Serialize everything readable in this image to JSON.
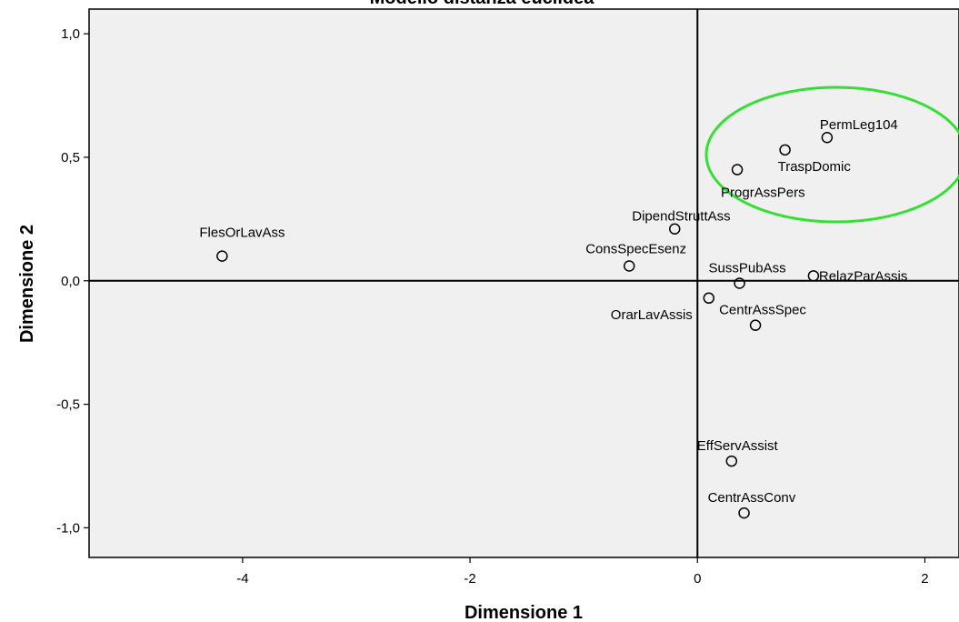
{
  "chart_data": {
    "type": "scatter",
    "title": "Modello distanza euclidea",
    "xlabel": "Dimensione 1",
    "ylabel": "Dimensione 2",
    "xlim": [
      -5.35,
      2.3
    ],
    "ylim": [
      -1.12,
      1.1
    ],
    "xticks": [
      -4,
      -2,
      0,
      2
    ],
    "xtick_labels": [
      "-4",
      "-2",
      "0",
      "2"
    ],
    "yticks": [
      1.0,
      0.5,
      0.0,
      -0.5,
      -1.0
    ],
    "ytick_labels": [
      "1,0",
      "0,5",
      "0,0",
      "-0,5",
      "-1,0"
    ],
    "reference_lines": {
      "x": 0,
      "y": 0
    },
    "grid": false,
    "background_color": "#f0f0f0",
    "highlight_color": "#33e033",
    "points": [
      {
        "label": "PermLeg104",
        "x": 1.14,
        "y": 0.58
      },
      {
        "label": "TraspDomic",
        "x": 0.77,
        "y": 0.53
      },
      {
        "label": "ProgrAssPers",
        "x": 0.35,
        "y": 0.45
      },
      {
        "label": "DipendStruttAss",
        "x": -0.2,
        "y": 0.21
      },
      {
        "label": "FlesOrLavAss",
        "x": -4.18,
        "y": 0.1
      },
      {
        "label": "ConsSpecEsenz",
        "x": -0.6,
        "y": 0.06
      },
      {
        "label": "SussPubAss",
        "x": 0.37,
        "y": -0.01
      },
      {
        "label": "RelazParAssis",
        "x": 1.02,
        "y": 0.02
      },
      {
        "label": "OrarLavAssis",
        "x": 0.1,
        "y": -0.07
      },
      {
        "label": "CentrAssSpec",
        "x": 0.51,
        "y": -0.18
      },
      {
        "label": "EffServAssist",
        "x": 0.3,
        "y": -0.73
      },
      {
        "label": "CentrAssConv",
        "x": 0.41,
        "y": -0.94
      }
    ]
  }
}
